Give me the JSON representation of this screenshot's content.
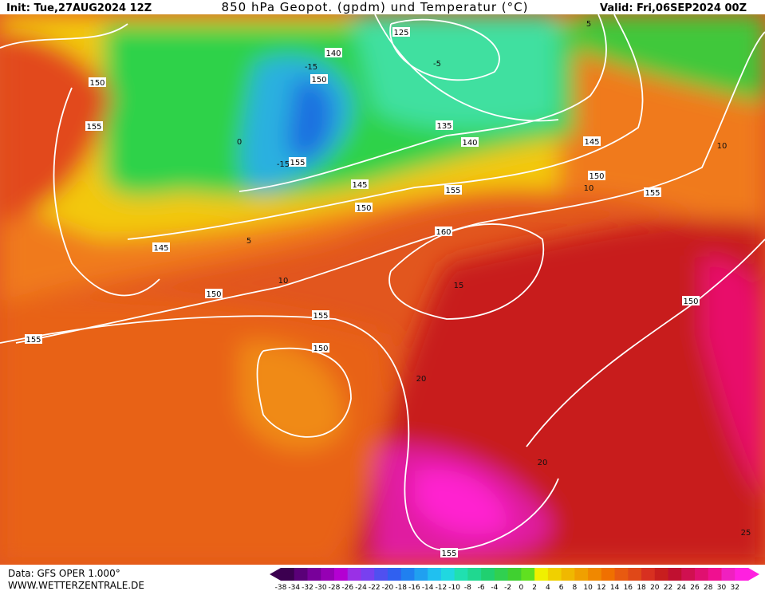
{
  "header": {
    "init": "Init: Tue,27AUG2024 12Z",
    "title": "850 hPa Geopot. (gpdm) und Temperatur (°C)",
    "valid": "Valid: Fri,06SEP2024 00Z"
  },
  "footer": {
    "data": "Data: GFS OPER 1.000°",
    "site": "WWW.WETTERZENTRALE.DE"
  },
  "geopotential_labels": [
    "125",
    "140",
    "150",
    "150",
    "155",
    "135",
    "140",
    "155",
    "145",
    "150",
    "155",
    "145",
    "155",
    "150",
    "145",
    "160",
    "150",
    "155",
    "155",
    "150",
    "150",
    "155"
  ],
  "temperature_labels": [
    "-15",
    "-15",
    "-5",
    "0",
    "5",
    "10",
    "10",
    "15",
    "20",
    "20",
    "25",
    "5",
    "10"
  ],
  "colorbar": {
    "labels": [
      "-38",
      "-34",
      "-32",
      "-30",
      "-28",
      "-26",
      "-24",
      "-22",
      "-20",
      "-18",
      "-16",
      "-14",
      "-12",
      "-10",
      "-8",
      "-6",
      "-4",
      "-2",
      "0",
      "2",
      "4",
      "6",
      "8",
      "10",
      "12",
      "14",
      "16",
      "18",
      "20",
      "22",
      "24",
      "26",
      "28",
      "30",
      "32"
    ]
  }
}
